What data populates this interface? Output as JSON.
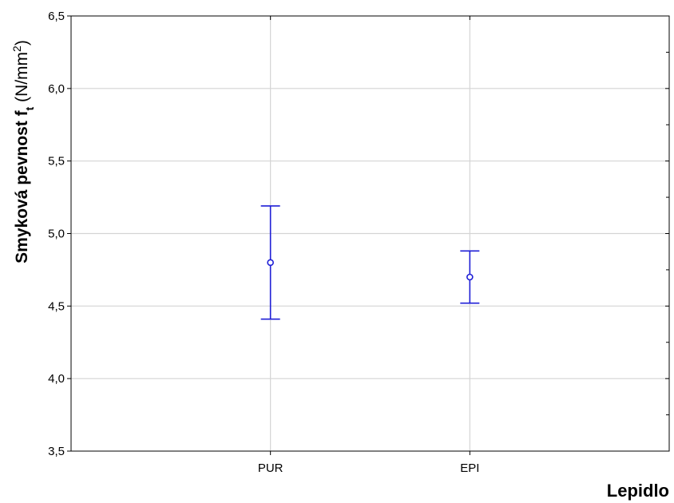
{
  "chart_data": {
    "type": "scatter",
    "subtype": "mean-with-error-bars",
    "categories": [
      "PUR",
      "EPI"
    ],
    "series": [
      {
        "values": [
          4.8,
          4.7
        ],
        "lower": [
          4.41,
          4.52
        ],
        "upper": [
          5.19,
          4.88
        ]
      }
    ],
    "xlabel": "Lepidlo",
    "ylabel": {
      "main": "Smyková pevnost f",
      "sub": "t",
      "unit": " (N/mm",
      "sup": "2",
      "close": ")"
    },
    "ylim": [
      3.5,
      6.5
    ],
    "yticks": [
      "3,5",
      "4,0",
      "4,5",
      "5,0",
      "5,5",
      "6,0",
      "6,5"
    ],
    "ytick_values": [
      3.5,
      4.0,
      4.5,
      5.0,
      5.5,
      6.0,
      6.5
    ],
    "grid": true,
    "colors": {
      "series": "#1f1fd6",
      "grid": "#d4d4d4",
      "axis": "#000000"
    }
  }
}
